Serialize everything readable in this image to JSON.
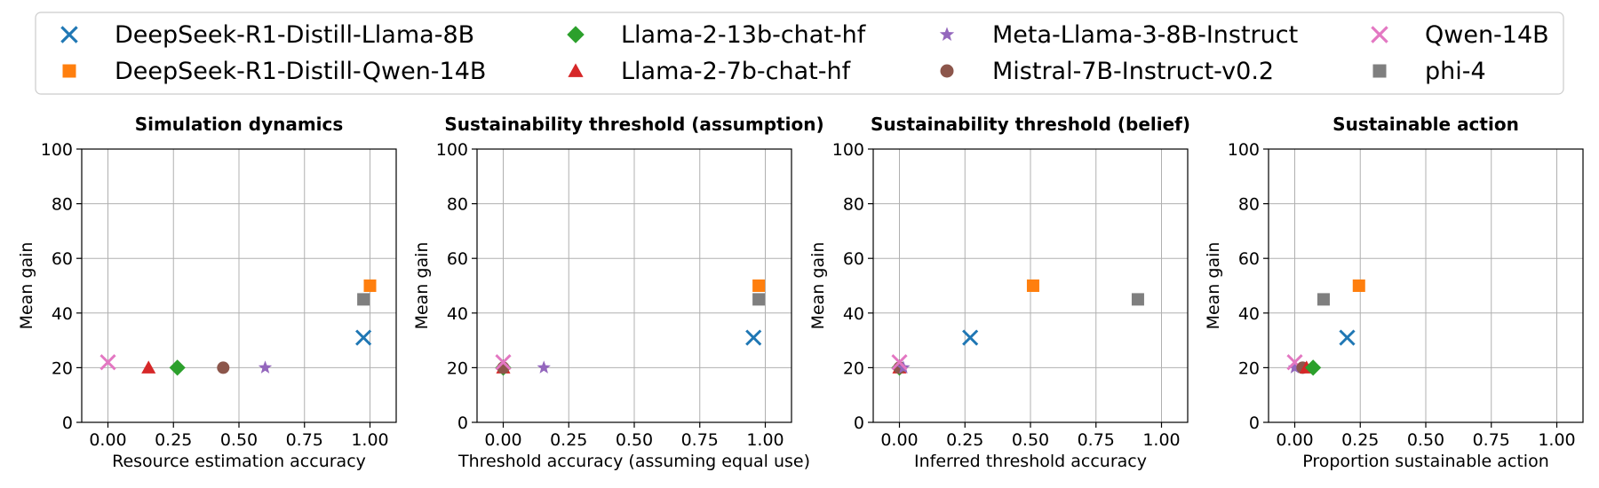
{
  "legend": [
    {
      "name": "DeepSeek-R1-Distill-Llama-8B",
      "color": "#1f77b4",
      "marker": "x-marker"
    },
    {
      "name": "DeepSeek-R1-Distill-Qwen-14B",
      "color": "#ff7f0e",
      "marker": "square-marker"
    },
    {
      "name": "Llama-2-13b-chat-hf",
      "color": "#2ca02c",
      "marker": "diamond-marker"
    },
    {
      "name": "Llama-2-7b-chat-hf",
      "color": "#d62728",
      "marker": "triangle-marker"
    },
    {
      "name": "Meta-Llama-3-8B-Instruct",
      "color": "#9467bd",
      "marker": "star-marker"
    },
    {
      "name": "Mistral-7B-Instruct-v0.2",
      "color": "#8c564b",
      "marker": "circle-marker"
    },
    {
      "name": "Qwen-14B",
      "color": "#e377c2",
      "marker": "x-marker"
    },
    {
      "name": "phi-4",
      "color": "#7f7f7f",
      "marker": "square-marker"
    }
  ],
  "chart_data": [
    {
      "type": "scatter",
      "title": "Simulation dynamics",
      "xlabel": "Resource estimation accuracy",
      "ylabel": "Mean gain",
      "xlim": [
        -0.1,
        1.1
      ],
      "ylim": [
        0,
        100
      ],
      "xticks": [
        "0.00",
        "0.25",
        "0.50",
        "0.75",
        "1.00"
      ],
      "yticks": [
        "0",
        "20",
        "40",
        "60",
        "80",
        "100"
      ],
      "grid": true,
      "points": [
        {
          "series": "Qwen-14B",
          "x": 0.0,
          "y": 22
        },
        {
          "series": "Llama-2-7b-chat-hf",
          "x": 0.155,
          "y": 20
        },
        {
          "series": "Llama-2-13b-chat-hf",
          "x": 0.265,
          "y": 20
        },
        {
          "series": "Mistral-7B-Instruct-v0.2",
          "x": 0.44,
          "y": 20
        },
        {
          "series": "Meta-Llama-3-8B-Instruct",
          "x": 0.6,
          "y": 20
        },
        {
          "series": "DeepSeek-R1-Distill-Llama-8B",
          "x": 0.975,
          "y": 31
        },
        {
          "series": "phi-4",
          "x": 0.975,
          "y": 45
        },
        {
          "series": "DeepSeek-R1-Distill-Qwen-14B",
          "x": 1.0,
          "y": 50
        }
      ]
    },
    {
      "type": "scatter",
      "title": "Sustainability threshold (assumption)",
      "xlabel": "Threshold accuracy (assuming equal use)",
      "ylabel": "Mean gain",
      "xlim": [
        -0.1,
        1.1
      ],
      "ylim": [
        0,
        100
      ],
      "xticks": [
        "0.00",
        "0.25",
        "0.50",
        "0.75",
        "1.00"
      ],
      "yticks": [
        "0",
        "20",
        "40",
        "60",
        "80",
        "100"
      ],
      "grid": true,
      "points": [
        {
          "series": "Llama-2-7b-chat-hf",
          "x": 0.0,
          "y": 20
        },
        {
          "series": "Llama-2-13b-chat-hf",
          "x": 0.0,
          "y": 20
        },
        {
          "series": "Mistral-7B-Instruct-v0.2",
          "x": 0.0,
          "y": 20
        },
        {
          "series": "Qwen-14B",
          "x": 0.0,
          "y": 22
        },
        {
          "series": "Meta-Llama-3-8B-Instruct",
          "x": 0.155,
          "y": 20
        },
        {
          "series": "DeepSeek-R1-Distill-Llama-8B",
          "x": 0.955,
          "y": 31
        },
        {
          "series": "phi-4",
          "x": 0.975,
          "y": 45
        },
        {
          "series": "DeepSeek-R1-Distill-Qwen-14B",
          "x": 0.975,
          "y": 50
        }
      ]
    },
    {
      "type": "scatter",
      "title": "Sustainability threshold (belief)",
      "xlabel": "Inferred threshold accuracy",
      "ylabel": "Mean gain",
      "xlim": [
        -0.1,
        1.1
      ],
      "ylim": [
        0,
        100
      ],
      "xticks": [
        "0.00",
        "0.25",
        "0.50",
        "0.75",
        "1.00"
      ],
      "yticks": [
        "0",
        "20",
        "40",
        "60",
        "80",
        "100"
      ],
      "grid": true,
      "points": [
        {
          "series": "Llama-2-13b-chat-hf",
          "x": 0.0,
          "y": 20
        },
        {
          "series": "Llama-2-7b-chat-hf",
          "x": 0.0,
          "y": 20
        },
        {
          "series": "Mistral-7B-Instruct-v0.2",
          "x": 0.0,
          "y": 20
        },
        {
          "series": "Meta-Llama-3-8B-Instruct",
          "x": 0.015,
          "y": 20
        },
        {
          "series": "Qwen-14B",
          "x": 0.0,
          "y": 22
        },
        {
          "series": "DeepSeek-R1-Distill-Llama-8B",
          "x": 0.27,
          "y": 31
        },
        {
          "series": "DeepSeek-R1-Distill-Qwen-14B",
          "x": 0.51,
          "y": 50
        },
        {
          "series": "phi-4",
          "x": 0.91,
          "y": 45
        }
      ]
    },
    {
      "type": "scatter",
      "title": "Sustainable action",
      "xlabel": "Proportion sustainable action",
      "ylabel": "Mean gain",
      "xlim": [
        -0.1,
        1.1
      ],
      "ylim": [
        0,
        100
      ],
      "xticks": [
        "0.00",
        "0.25",
        "0.50",
        "0.75",
        "1.00"
      ],
      "yticks": [
        "0",
        "20",
        "40",
        "60",
        "80",
        "100"
      ],
      "grid": true,
      "points": [
        {
          "series": "Meta-Llama-3-8B-Instruct",
          "x": 0.0,
          "y": 20
        },
        {
          "series": "Qwen-14B",
          "x": 0.0,
          "y": 22
        },
        {
          "series": "Mistral-7B-Instruct-v0.2",
          "x": 0.03,
          "y": 20
        },
        {
          "series": "Llama-2-7b-chat-hf",
          "x": 0.045,
          "y": 20
        },
        {
          "series": "Llama-2-13b-chat-hf",
          "x": 0.07,
          "y": 20
        },
        {
          "series": "DeepSeek-R1-Distill-Llama-8B",
          "x": 0.2,
          "y": 31
        },
        {
          "series": "phi-4",
          "x": 0.11,
          "y": 45
        },
        {
          "series": "DeepSeek-R1-Distill-Qwen-14B",
          "x": 0.245,
          "y": 50
        }
      ]
    }
  ]
}
